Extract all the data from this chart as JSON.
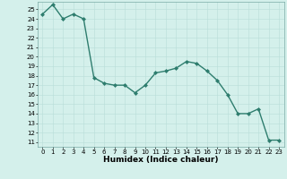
{
  "x": [
    0,
    1,
    2,
    3,
    4,
    5,
    6,
    7,
    8,
    9,
    10,
    11,
    12,
    13,
    14,
    15,
    16,
    17,
    18,
    19,
    20,
    21,
    22,
    23
  ],
  "y": [
    24.5,
    25.5,
    24.0,
    24.5,
    24.0,
    17.8,
    17.2,
    17.0,
    17.0,
    16.2,
    17.0,
    18.3,
    18.5,
    18.8,
    19.5,
    19.3,
    18.5,
    17.5,
    16.0,
    14.0,
    14.0,
    14.5,
    11.2,
    11.2
  ],
  "line_color": "#2e7d6e",
  "marker": "D",
  "marker_size": 2.0,
  "bg_color": "#d4f0eb",
  "grid_color": "#b8ddd8",
  "xlabel": "Humidex (Indice chaleur)",
  "xlim": [
    -0.5,
    23.5
  ],
  "ylim": [
    10.5,
    25.8
  ],
  "yticks": [
    11,
    12,
    13,
    14,
    15,
    16,
    17,
    18,
    19,
    20,
    21,
    22,
    23,
    24,
    25
  ],
  "xticks": [
    0,
    1,
    2,
    3,
    4,
    5,
    6,
    7,
    8,
    9,
    10,
    11,
    12,
    13,
    14,
    15,
    16,
    17,
    18,
    19,
    20,
    21,
    22,
    23
  ],
  "tick_fontsize": 5.0,
  "xlabel_fontsize": 6.5,
  "line_width": 1.0
}
